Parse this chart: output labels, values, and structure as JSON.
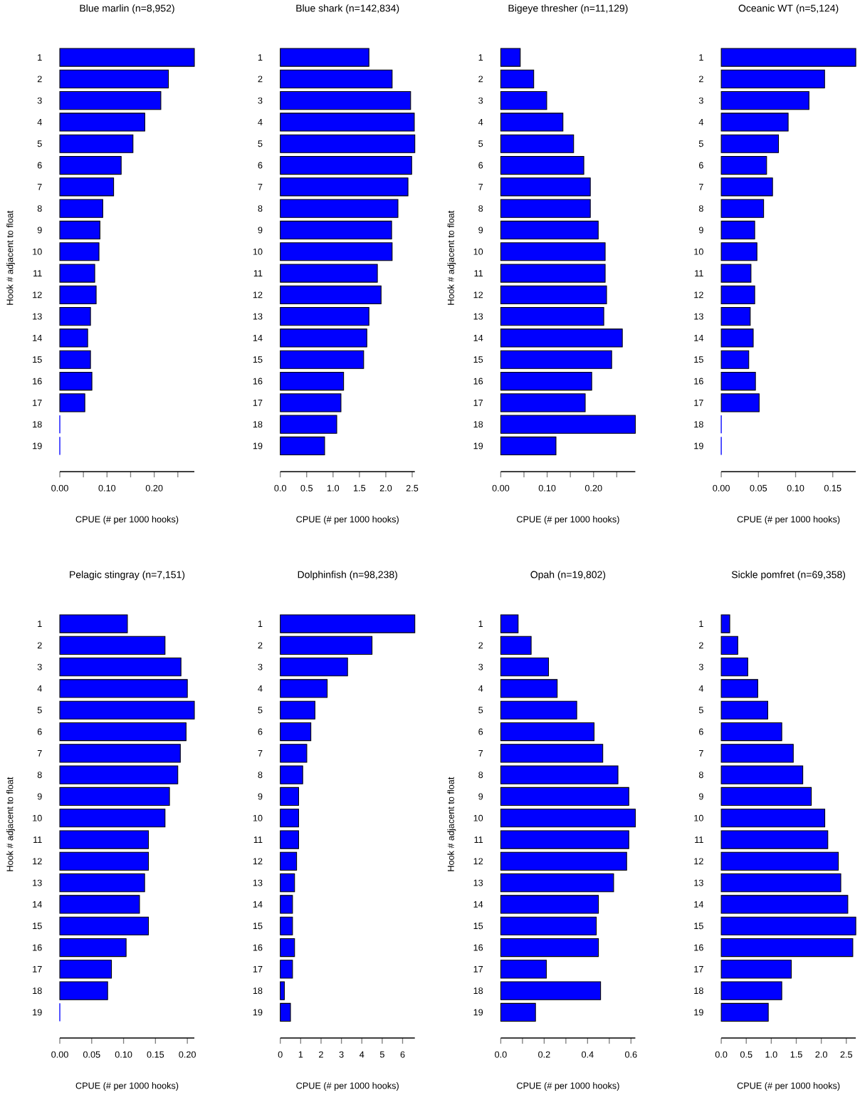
{
  "chart_data": [
    {
      "type": "bar",
      "orientation": "horizontal",
      "title": "Blue marlin (n=8,952)",
      "xlabel": "CPUE (# per 1000 hooks)",
      "ylabel": "Hook # adjacent to float",
      "color": "#0000ff",
      "categories": [
        "1",
        "2",
        "3",
        "4",
        "5",
        "6",
        "7",
        "8",
        "9",
        "10",
        "11",
        "12",
        "13",
        "14",
        "15",
        "16",
        "17",
        "18",
        "19"
      ],
      "values": [
        0.285,
        0.23,
        0.214,
        0.18,
        0.155,
        0.13,
        0.114,
        0.091,
        0.085,
        0.083,
        0.074,
        0.077,
        0.065,
        0.059,
        0.065,
        0.068,
        0.053,
        0,
        0
      ],
      "xlim": [
        0,
        0.285
      ],
      "xticks": [
        {
          "value": 0,
          "label": "0.00"
        },
        {
          "value": 0.05,
          "label": null
        },
        {
          "value": 0.1,
          "label": "0.10"
        },
        {
          "value": 0.15,
          "label": null
        },
        {
          "value": 0.2,
          "label": "0.20"
        },
        {
          "value": 0.25,
          "label": null
        }
      ]
    },
    {
      "type": "bar",
      "orientation": "horizontal",
      "title": "Blue shark (n=142,834)",
      "xlabel": "CPUE (# per 1000 hooks)",
      "color": "#0000ff",
      "categories": [
        "1",
        "2",
        "3",
        "4",
        "5",
        "6",
        "7",
        "8",
        "9",
        "10",
        "11",
        "12",
        "13",
        "14",
        "15",
        "16",
        "17",
        "18",
        "19"
      ],
      "values": [
        1.68,
        2.12,
        2.47,
        2.54,
        2.55,
        2.49,
        2.42,
        2.23,
        2.11,
        2.12,
        1.84,
        1.91,
        1.68,
        1.64,
        1.58,
        1.2,
        1.15,
        1.07,
        0.84
      ],
      "xlim": [
        0,
        2.55
      ],
      "xticks": [
        {
          "value": 0,
          "label": "0.0"
        },
        0.5,
        {
          "value": 1,
          "label": "1.0"
        },
        1.5,
        {
          "value": 2,
          "label": "2.0"
        },
        2.5
      ]
    },
    {
      "type": "bar",
      "orientation": "horizontal",
      "title": "Bigeye thresher (n=11,129)",
      "xlabel": "CPUE (# per 1000 hooks)",
      "ylabel": "Hook # adjacent to float",
      "color": "#0000ff",
      "categories": [
        "1",
        "2",
        "3",
        "4",
        "5",
        "6",
        "7",
        "8",
        "9",
        "10",
        "11",
        "12",
        "13",
        "14",
        "15",
        "16",
        "17",
        "18",
        "19"
      ],
      "values": [
        0.042,
        0.071,
        0.099,
        0.134,
        0.157,
        0.179,
        0.193,
        0.193,
        0.21,
        0.225,
        0.225,
        0.228,
        0.222,
        0.262,
        0.239,
        0.196,
        0.182,
        0.29,
        0.119
      ],
      "xlim": [
        0,
        0.29
      ],
      "xticks": [
        {
          "value": 0,
          "label": "0.00"
        },
        {
          "value": 0.05,
          "label": null
        },
        {
          "value": 0.1,
          "label": "0.10"
        },
        {
          "value": 0.15,
          "label": null
        },
        {
          "value": 0.2,
          "label": "0.20"
        },
        {
          "value": 0.25,
          "label": null
        }
      ]
    },
    {
      "type": "bar",
      "orientation": "horizontal",
      "title": "Oceanic WT (n=5,124)",
      "xlabel": "CPUE (# per 1000 hooks)",
      "color": "#0000ff",
      "categories": [
        "1",
        "2",
        "3",
        "4",
        "5",
        "6",
        "7",
        "8",
        "9",
        "10",
        "11",
        "12",
        "13",
        "14",
        "15",
        "16",
        "17",
        "18",
        "19"
      ],
      "values": [
        0.181,
        0.139,
        0.118,
        0.09,
        0.077,
        0.061,
        0.069,
        0.057,
        0.045,
        0.048,
        0.04,
        0.045,
        0.039,
        0.043,
        0.037,
        0.046,
        0.051,
        0,
        0
      ],
      "xlim": [
        0,
        0.181
      ],
      "xticks": [
        {
          "value": 0,
          "label": "0.00"
        },
        0.05,
        {
          "value": 0.1,
          "label": "0.10"
        },
        0.15
      ]
    },
    {
      "type": "bar",
      "orientation": "horizontal",
      "title": "Pelagic stingray (n=7,151)",
      "xlabel": "CPUE (# per 1000 hooks)",
      "ylabel": "Hook # adjacent to float",
      "color": "#0000ff",
      "categories": [
        "1",
        "2",
        "3",
        "4",
        "5",
        "6",
        "7",
        "8",
        "9",
        "10",
        "11",
        "12",
        "13",
        "14",
        "15",
        "16",
        "17",
        "18",
        "19"
      ],
      "values": [
        0.106,
        0.165,
        0.19,
        0.2,
        0.211,
        0.198,
        0.189,
        0.185,
        0.172,
        0.165,
        0.139,
        0.139,
        0.133,
        0.125,
        0.139,
        0.104,
        0.081,
        0.075,
        0
      ],
      "xlim": [
        0,
        0.211
      ],
      "xticks": [
        {
          "value": 0,
          "label": "0.00"
        },
        0.05,
        {
          "value": 0.1,
          "label": "0.10"
        },
        0.15,
        {
          "value": 0.2,
          "label": "0.20"
        }
      ]
    },
    {
      "type": "bar",
      "orientation": "horizontal",
      "title": "Dolphinfish (n=98,238)",
      "xlabel": "CPUE (# per 1000 hooks)",
      "color": "#0000ff",
      "categories": [
        "1",
        "2",
        "3",
        "4",
        "5",
        "6",
        "7",
        "8",
        "9",
        "10",
        "11",
        "12",
        "13",
        "14",
        "15",
        "16",
        "17",
        "18",
        "19"
      ],
      "values": [
        6.6,
        4.5,
        3.3,
        2.3,
        1.7,
        1.5,
        1.3,
        1.1,
        0.9,
        0.9,
        0.9,
        0.8,
        0.7,
        0.6,
        0.6,
        0.7,
        0.6,
        0.2,
        0.5
      ],
      "xlim": [
        0,
        6.6
      ],
      "xticks": [
        0,
        1,
        2,
        3,
        4,
        5,
        6
      ]
    },
    {
      "type": "bar",
      "orientation": "horizontal",
      "title": "Opah (n=19,802)",
      "xlabel": "CPUE (# per 1000 hooks)",
      "ylabel": "Hook # adjacent to float",
      "color": "#0000ff",
      "categories": [
        "1",
        "2",
        "3",
        "4",
        "5",
        "6",
        "7",
        "8",
        "9",
        "10",
        "11",
        "12",
        "13",
        "14",
        "15",
        "16",
        "17",
        "18",
        "19"
      ],
      "values": [
        0.08,
        0.14,
        0.22,
        0.26,
        0.35,
        0.43,
        0.47,
        0.54,
        0.59,
        0.62,
        0.59,
        0.58,
        0.52,
        0.45,
        0.44,
        0.45,
        0.21,
        0.46,
        0.16
      ],
      "xlim": [
        0,
        0.62
      ],
      "xticks": [
        {
          "value": 0,
          "label": "0.0"
        },
        {
          "value": 0.1,
          "label": null
        },
        0.2,
        {
          "value": 0.3,
          "label": null
        },
        0.4,
        {
          "value": 0.5,
          "label": null
        },
        0.6
      ]
    },
    {
      "type": "bar",
      "orientation": "horizontal",
      "title": "Sickle pomfret (n=69,358)",
      "xlabel": "CPUE (# per 1000 hooks)",
      "color": "#0000ff",
      "categories": [
        "1",
        "2",
        "3",
        "4",
        "5",
        "6",
        "7",
        "8",
        "9",
        "10",
        "11",
        "12",
        "13",
        "14",
        "15",
        "16",
        "17",
        "18",
        "19"
      ],
      "values": [
        0.17,
        0.33,
        0.53,
        0.73,
        0.93,
        1.21,
        1.44,
        1.63,
        1.8,
        2.07,
        2.13,
        2.34,
        2.39,
        2.53,
        2.69,
        2.63,
        1.4,
        1.21,
        0.94
      ],
      "xlim": [
        0,
        2.69
      ],
      "xticks": [
        {
          "value": 0,
          "label": "0.0"
        },
        0.5,
        {
          "value": 1,
          "label": "1.0"
        },
        1.5,
        {
          "value": 2,
          "label": "2.0"
        },
        2.5
      ]
    }
  ]
}
